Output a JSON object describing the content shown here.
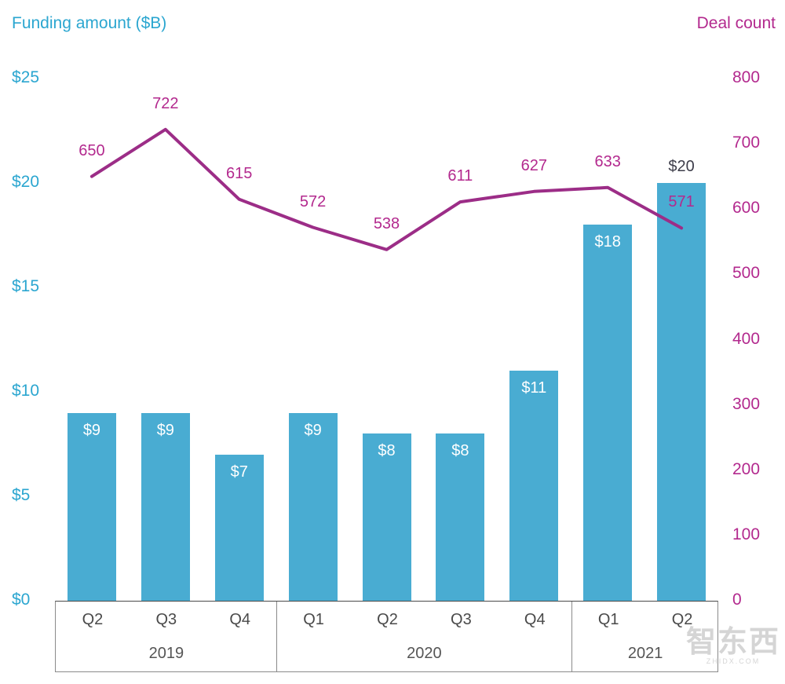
{
  "watermark": {
    "text": "智东西",
    "subtext": "ZHIDX.COM"
  },
  "chart_data": {
    "type": "bar+line combo",
    "categories": [
      "Q2",
      "Q3",
      "Q4",
      "Q1",
      "Q2",
      "Q3",
      "Q4",
      "Q1",
      "Q2"
    ],
    "year_groups": [
      {
        "label": "2019",
        "span": 3
      },
      {
        "label": "2020",
        "span": 4
      },
      {
        "label": "2021",
        "span": 2
      }
    ],
    "series": [
      {
        "name": "Funding amount ($B)",
        "type": "bar",
        "axis": "left",
        "color": "#49acd2",
        "values": [
          9,
          9,
          7,
          9,
          8,
          8,
          11,
          18,
          20
        ],
        "labels": [
          "$9",
          "$9",
          "$7",
          "$9",
          "$8",
          "$8",
          "$11",
          "$18",
          "$20"
        ],
        "label_inside": [
          true,
          true,
          true,
          true,
          true,
          true,
          true,
          true,
          false
        ]
      },
      {
        "name": "Deal count",
        "type": "line",
        "axis": "right",
        "color": "#9c2d87",
        "values": [
          650,
          722,
          615,
          572,
          538,
          611,
          627,
          633,
          571
        ],
        "labels": [
          "650",
          "722",
          "615",
          "572",
          "538",
          "611",
          "627",
          "633",
          "571"
        ]
      }
    ],
    "left_axis": {
      "title": "Funding amount ($B)",
      "color": "#2ba6d0",
      "min": 0,
      "max": 25,
      "ticks": [
        "$0",
        "$5",
        "$10",
        "$15",
        "$20",
        "$25"
      ]
    },
    "right_axis": {
      "title": "Deal count",
      "color": "#b3298e",
      "min": 0,
      "max": 800,
      "ticks": [
        "0",
        "100",
        "200",
        "300",
        "400",
        "500",
        "600",
        "700",
        "800"
      ]
    },
    "grid": false,
    "legend": "none (axis titles act as legend)"
  }
}
